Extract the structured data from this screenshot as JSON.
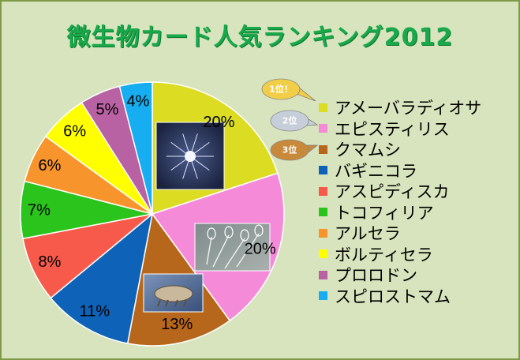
{
  "chart_data": {
    "type": "pie",
    "title": "微生物カード人気ランキング2012",
    "start": "12 o'clock, clockwise",
    "slices": [
      {
        "label": "アメーバラディオサ",
        "value": 20,
        "display": "20%",
        "color": "#dcdc23",
        "picture": "sun-animalcule-photo"
      },
      {
        "label": "エピスティリス",
        "value": 20,
        "display": "20%",
        "color": "#f58ad8",
        "picture": "epistylis-colony-photo"
      },
      {
        "label": "クマムシ",
        "value": 13,
        "display": "13%",
        "color": "#b7671c",
        "picture": "tardigrade-photo"
      },
      {
        "label": "バギニコラ",
        "value": 11,
        "display": "11%",
        "color": "#0e63b8"
      },
      {
        "label": "アスピディスカ",
        "value": 8,
        "display": "8%",
        "color": "#f75a4a"
      },
      {
        "label": "トコフィリア",
        "value": 7,
        "display": "7%",
        "color": "#2bc41c"
      },
      {
        "label": "アルセラ",
        "value": 6,
        "display": "6%",
        "color": "#f7942c"
      },
      {
        "label": "ボルティセラ",
        "value": 6,
        "display": "6%",
        "color": "#ffff00"
      },
      {
        "label": "プロロドン",
        "value": 5,
        "display": "5%",
        "color": "#b861a3"
      },
      {
        "label": "スピロストマム",
        "value": 4,
        "display": "4%",
        "color": "#16aef0"
      }
    ],
    "legend": "right",
    "rank_badges": [
      {
        "text": "1位！",
        "color": "#f2ce48",
        "target": "アメーバラディオサ"
      },
      {
        "text": "2位",
        "color": "#c6cfd9",
        "target": "エピスティリス"
      },
      {
        "text": "3位",
        "color": "#c88a3a",
        "target": "クマムシ"
      }
    ]
  },
  "colors": {
    "background": "#d7e4bd",
    "border": "#7f9a48",
    "title": "#19a84a"
  }
}
